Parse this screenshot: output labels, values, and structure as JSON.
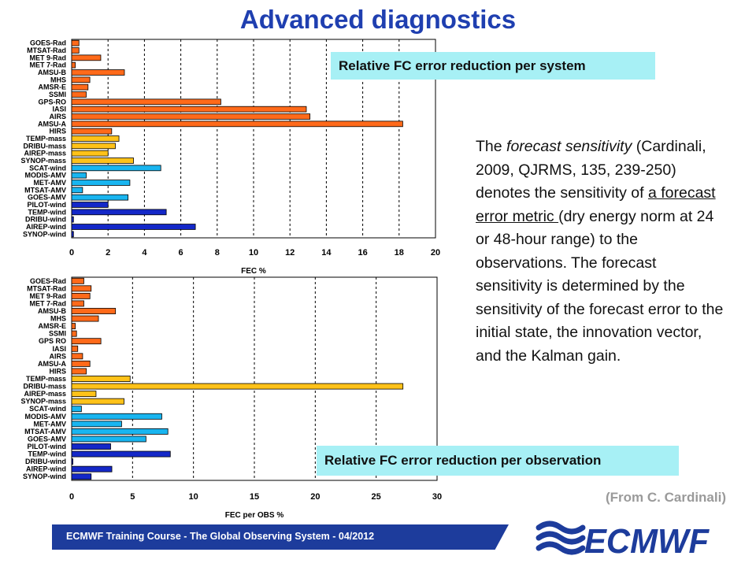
{
  "slide": {
    "title": "Advanced diagnostics",
    "callout_system": "Relative FC error reduction per system",
    "callout_observation": "Relative FC error reduction per observation",
    "description": {
      "p1": "The ",
      "italic": "forecast sensitivity",
      "p2": " (Cardinali, 2009, QJRMS, 135, 239-250) denotes the sensitivity of ",
      "underlined": "a forecast error metric ",
      "p3": "(dry energy norm at 24 or 48-hour range) to the observations. The forecast sensitivity is determined by the sensitivity of the forecast error to the initial state, the innovation vector, and the Kalman gain."
    },
    "credit": "(From C. Cardinali)",
    "footer": "ECMWF Training Course - The Global Observing System - 04/2012",
    "logo_text": "ECMWF",
    "colors": {
      "title": "#1f3fb0",
      "callout_bg": "#a7f0f5",
      "footer_bar": "#1d3c9c",
      "credit": "#9a9a9a"
    }
  },
  "chart_data": [
    {
      "type": "bar",
      "orientation": "horizontal",
      "xlabel": "FEC %",
      "xlim": [
        0,
        20
      ],
      "xticks": [
        0,
        2,
        4,
        6,
        8,
        10,
        12,
        14,
        16,
        18,
        20
      ],
      "categories": [
        "GOES-Rad",
        "MTSAT-Rad",
        "MET 9-Rad",
        "MET 7-Rad",
        "AMSU-B",
        "MHS",
        "AMSR-E",
        "SSMI",
        "GPS-RO",
        "IASI",
        "AIRS",
        "AMSU-A",
        "HIRS",
        "TEMP-mass",
        "DRIBU-mass",
        "AIREP-mass",
        "SYNOP-mass",
        "SCAT-wind",
        "MODIS-AMV",
        "MET-AMV",
        "MTSAT-AMV",
        "GOES-AMV",
        "PILOT-wind",
        "TEMP-wind",
        "DRIBU-wind",
        "AIREP-wind",
        "SYNOP-wind"
      ],
      "values": [
        0.4,
        0.4,
        1.6,
        0.2,
        2.9,
        1.0,
        0.9,
        0.8,
        8.2,
        12.9,
        13.1,
        18.2,
        2.2,
        2.6,
        2.4,
        2.0,
        3.4,
        4.9,
        0.8,
        3.2,
        0.6,
        3.1,
        2.0,
        5.2,
        0.1,
        6.8,
        0.1
      ],
      "colors": [
        "#ff6a1a",
        "#ff6a1a",
        "#ff6a1a",
        "#ff6a1a",
        "#ff6a1a",
        "#ff6a1a",
        "#ff6a1a",
        "#ff6a1a",
        "#ff6a1a",
        "#ff6a1a",
        "#ff6a1a",
        "#ff6a1a",
        "#ff6a1a",
        "#ffc219",
        "#ffc219",
        "#ffc219",
        "#ffc219",
        "#19b5f0",
        "#19b5f0",
        "#19b5f0",
        "#19b5f0",
        "#19b5f0",
        "#1428c8",
        "#1428c8",
        "#1428c8",
        "#1428c8",
        "#1428c8"
      ],
      "grid_x": true
    },
    {
      "type": "bar",
      "orientation": "horizontal",
      "xlabel": "FEC per OBS %",
      "xlim": [
        0,
        30
      ],
      "xticks": [
        0,
        5,
        10,
        15,
        20,
        25,
        30
      ],
      "categories": [
        "GOES-Rad",
        "MTSAT-Rad",
        "MET 9-Rad",
        "MET 7-Rad",
        "AMSU-B",
        "MHS",
        "AMSR-E",
        "SSMI",
        "GPS RO",
        "IASI",
        "AIRS",
        "AMSU-A",
        "HIRS",
        "TEMP-mass",
        "DRIBU-mass",
        "AIREP-mass",
        "SYNOP-mass",
        "SCAT-wind",
        "MODIS-AMV",
        "MET-AMV",
        "MTSAT-AMV",
        "GOES-AMV",
        "PILOT-wind",
        "TEMP-wind",
        "DRIBU-wind",
        "AIREP-wind",
        "SYNOP-wind"
      ],
      "values": [
        1.0,
        1.6,
        1.5,
        1.0,
        3.6,
        2.2,
        0.3,
        0.4,
        2.4,
        0.5,
        0.9,
        1.5,
        1.2,
        4.8,
        27.2,
        2.0,
        4.3,
        0.8,
        7.4,
        4.1,
        7.9,
        6.1,
        3.2,
        8.1,
        0.1,
        3.3,
        1.6
      ],
      "colors": [
        "#ff6a1a",
        "#ff6a1a",
        "#ff6a1a",
        "#ff6a1a",
        "#ff6a1a",
        "#ff6a1a",
        "#ff6a1a",
        "#ff6a1a",
        "#ff6a1a",
        "#ff6a1a",
        "#ff6a1a",
        "#ff6a1a",
        "#ff6a1a",
        "#ffc219",
        "#ffc219",
        "#ffc219",
        "#ffc219",
        "#19b5f0",
        "#19b5f0",
        "#19b5f0",
        "#19b5f0",
        "#19b5f0",
        "#1428c8",
        "#1428c8",
        "#1428c8",
        "#1428c8",
        "#1428c8"
      ],
      "grid_x": true
    }
  ]
}
